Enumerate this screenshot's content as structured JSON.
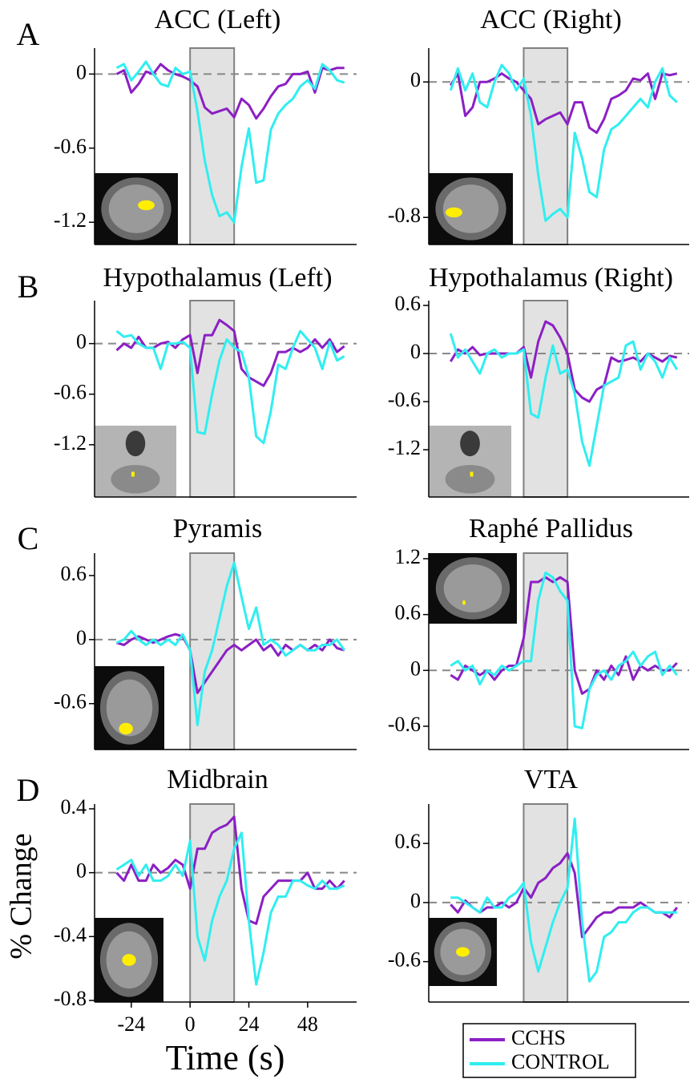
{
  "panel_labels": [
    "A",
    "B",
    "C",
    "D"
  ],
  "xlabel": "Time (s)",
  "ylabel": "% Change",
  "chart_data": [
    {
      "type": "line",
      "title": "ACC (Left)",
      "x": [
        -30,
        -27,
        -24,
        -21,
        -18,
        -15,
        -12,
        -9,
        -6,
        -3,
        0,
        3,
        6,
        9,
        12,
        15,
        18,
        21,
        24,
        27,
        30,
        33,
        36,
        39,
        42,
        45,
        48,
        51,
        54,
        57,
        60,
        63
      ],
      "xlim": [
        -39,
        68
      ],
      "ylim": [
        -1.38,
        0.21
      ],
      "yticks": [
        0,
        -0.6,
        -1.2
      ],
      "shade": [
        0,
        18
      ],
      "hline": 0,
      "series": [
        {
          "name": "CCHS",
          "color": "#8b1fc4",
          "values": [
            0,
            0.03,
            -0.15,
            -0.08,
            0.02,
            0,
            0.08,
            0.03,
            0,
            -0.02,
            -0.05,
            -0.1,
            -0.27,
            -0.32,
            -0.3,
            -0.28,
            -0.35,
            -0.2,
            -0.25,
            -0.36,
            -0.28,
            -0.18,
            -0.1,
            -0.08,
            0,
            0,
            0.02,
            -0.15,
            0.05,
            0.03,
            0.05,
            0.05
          ]
        },
        {
          "name": "CONTROL",
          "color": "#30eef0",
          "values": [
            0.05,
            0.08,
            -0.05,
            0.02,
            0.1,
            0,
            -0.08,
            -0.1,
            0.05,
            0,
            0.02,
            -0.3,
            -0.7,
            -0.98,
            -1.15,
            -1.12,
            -1.2,
            -0.75,
            -0.44,
            -0.88,
            -0.86,
            -0.45,
            -0.32,
            -0.25,
            -0.2,
            -0.1,
            -0.05,
            -0.12,
            0.08,
            0.03,
            -0.05,
            -0.07
          ]
        }
      ]
    },
    {
      "type": "line",
      "title": "ACC (Right)",
      "x": [
        -30,
        -27,
        -24,
        -21,
        -18,
        -15,
        -12,
        -9,
        -6,
        -3,
        0,
        3,
        6,
        9,
        12,
        15,
        18,
        21,
        24,
        27,
        30,
        33,
        36,
        39,
        42,
        45,
        48,
        51,
        54,
        57,
        60,
        63
      ],
      "xlim": [
        -39,
        68
      ],
      "ylim": [
        -0.96,
        0.2
      ],
      "yticks": [
        0,
        -0.8
      ],
      "shade": [
        0,
        18
      ],
      "hline": 0,
      "series": [
        {
          "name": "CCHS",
          "color": "#8b1fc4",
          "values": [
            -0.02,
            0.05,
            -0.2,
            -0.15,
            0,
            0,
            0.02,
            0.05,
            0.02,
            0,
            -0.05,
            -0.1,
            -0.25,
            -0.22,
            -0.2,
            -0.18,
            -0.25,
            -0.12,
            -0.12,
            -0.27,
            -0.3,
            -0.22,
            -0.1,
            -0.08,
            -0.05,
            0.02,
            0.01,
            0.05,
            -0.1,
            0.05,
            0.04,
            0.05
          ]
        },
        {
          "name": "CONTROL",
          "color": "#30eef0",
          "values": [
            -0.05,
            0.08,
            -0.05,
            0.05,
            -0.12,
            -0.15,
            0,
            0.1,
            0.05,
            -0.05,
            0.02,
            -0.2,
            -0.55,
            -0.82,
            -0.78,
            -0.75,
            -0.8,
            -0.3,
            -0.45,
            -0.65,
            -0.68,
            -0.4,
            -0.28,
            -0.25,
            -0.2,
            -0.15,
            -0.1,
            -0.15,
            0,
            0.08,
            -0.08,
            -0.12
          ]
        }
      ]
    },
    {
      "type": "line",
      "title": "Hypothalamus (Left)",
      "x": [
        -30,
        -27,
        -24,
        -21,
        -18,
        -15,
        -12,
        -9,
        -6,
        -3,
        0,
        3,
        6,
        9,
        12,
        15,
        18,
        21,
        24,
        27,
        30,
        33,
        36,
        39,
        42,
        45,
        48,
        51,
        54,
        57,
        60,
        63
      ],
      "xlim": [
        -39,
        68
      ],
      "ylim": [
        -1.82,
        0.51
      ],
      "yticks": [
        0,
        -0.6,
        -1.2
      ],
      "shade": [
        0,
        18
      ],
      "hline": 0,
      "series": [
        {
          "name": "CCHS",
          "color": "#8b1fc4",
          "values": [
            -0.08,
            0,
            -0.05,
            0.08,
            -0.05,
            -0.05,
            0,
            0.02,
            -0.05,
            0.05,
            0.1,
            -0.35,
            0.1,
            0.1,
            0.28,
            0.22,
            0.15,
            -0.3,
            -0.4,
            -0.45,
            -0.5,
            -0.35,
            -0.1,
            -0.1,
            -0.05,
            -0.1,
            -0.05,
            0.05,
            -0.05,
            0.05,
            -0.1,
            -0.03
          ]
        },
        {
          "name": "CONTROL",
          "color": "#30eef0",
          "values": [
            0.15,
            0.08,
            0.1,
            0,
            -0.05,
            -0.05,
            -0.3,
            0,
            0,
            0.02,
            -0.05,
            -1.05,
            -1.07,
            -0.6,
            -0.2,
            0.05,
            -0.05,
            -0.1,
            -0.4,
            -1.1,
            -1.18,
            -0.8,
            -0.25,
            -0.3,
            -0.05,
            0.15,
            0.05,
            -0.05,
            -0.3,
            0.02,
            -0.2,
            -0.15
          ]
        }
      ]
    },
    {
      "type": "line",
      "title": "Hypothalamus (Right)",
      "x": [
        -30,
        -27,
        -24,
        -21,
        -18,
        -15,
        -12,
        -9,
        -6,
        -3,
        0,
        3,
        6,
        9,
        12,
        15,
        18,
        21,
        24,
        27,
        30,
        33,
        36,
        39,
        42,
        45,
        48,
        51,
        54,
        57,
        60,
        63
      ],
      "xlim": [
        -39,
        68
      ],
      "ylim": [
        -1.79,
        0.66
      ],
      "yticks": [
        0.6,
        0,
        -0.6,
        -1.2
      ],
      "shade": [
        0,
        18
      ],
      "hline": 0,
      "series": [
        {
          "name": "CCHS",
          "color": "#8b1fc4",
          "values": [
            -0.1,
            0.05,
            0,
            0.08,
            -0.02,
            0,
            0,
            0,
            0,
            0,
            0.08,
            -0.3,
            0.15,
            0.4,
            0.35,
            0.2,
            0,
            -0.45,
            -0.55,
            -0.6,
            -0.45,
            -0.4,
            -0.05,
            -0.1,
            -0.08,
            -0.05,
            -0.1,
            0,
            -0.05,
            -0.1,
            -0.03,
            -0.05
          ]
        },
        {
          "name": "CONTROL",
          "color": "#30eef0",
          "values": [
            0.25,
            -0.05,
            0.05,
            -0.1,
            -0.25,
            0,
            0.05,
            -0.05,
            0,
            0,
            0.05,
            -0.75,
            -0.8,
            -0.3,
            0.1,
            -0.25,
            -0.2,
            -0.5,
            -1.1,
            -1.4,
            -0.9,
            -0.4,
            -0.35,
            -0.3,
            0.1,
            0.15,
            -0.2,
            0,
            -0.1,
            -0.3,
            -0.05,
            -0.2
          ]
        }
      ]
    },
    {
      "type": "line",
      "title": "Pyramis",
      "x": [
        -30,
        -27,
        -24,
        -21,
        -18,
        -15,
        -12,
        -9,
        -6,
        -3,
        0,
        3,
        6,
        9,
        12,
        15,
        18,
        21,
        24,
        27,
        30,
        33,
        36,
        39,
        42,
        45,
        48,
        51,
        54,
        57,
        60,
        63
      ],
      "xlim": [
        -39,
        68
      ],
      "ylim": [
        -1.03,
        0.81
      ],
      "yticks": [
        0.6,
        0,
        -0.6
      ],
      "shade": [
        0,
        18
      ],
      "hline": 0,
      "series": [
        {
          "name": "CCHS",
          "color": "#8b1fc4",
          "values": [
            -0.03,
            -0.05,
            0,
            0.03,
            0,
            -0.03,
            0,
            0.03,
            0.05,
            0.03,
            -0.1,
            -0.5,
            -0.4,
            -0.3,
            -0.2,
            -0.1,
            -0.05,
            -0.1,
            -0.05,
            0,
            -0.1,
            -0.05,
            -0.15,
            -0.05,
            -0.1,
            -0.05,
            -0.1,
            -0.05,
            -0.1,
            0,
            -0.08,
            -0.1
          ]
        },
        {
          "name": "CONTROL",
          "color": "#30eef0",
          "values": [
            -0.03,
            0,
            0.08,
            0,
            -0.05,
            0,
            -0.05,
            0,
            -0.05,
            0.05,
            -0.1,
            -0.8,
            -0.3,
            -0.1,
            0.2,
            0.5,
            0.72,
            0.4,
            0.1,
            0.3,
            -0.05,
            0,
            -0.05,
            -0.15,
            -0.1,
            -0.05,
            -0.1,
            -0.1,
            -0.05,
            -0.05,
            0,
            -0.1
          ]
        }
      ]
    },
    {
      "type": "line",
      "title": "Raphé Pallidus",
      "x": [
        -30,
        -27,
        -24,
        -21,
        -18,
        -15,
        -12,
        -9,
        -6,
        -3,
        0,
        3,
        6,
        9,
        12,
        15,
        18,
        21,
        24,
        27,
        30,
        33,
        36,
        39,
        42,
        45,
        48,
        51,
        54,
        57,
        60,
        63
      ],
      "xlim": [
        -39,
        68
      ],
      "ylim": [
        -0.85,
        1.26
      ],
      "yticks": [
        1.2,
        0.6,
        0,
        -0.6
      ],
      "shade": [
        0,
        18
      ],
      "hline": 0,
      "series": [
        {
          "name": "CCHS",
          "color": "#8b1fc4",
          "values": [
            -0.05,
            -0.1,
            0.05,
            0,
            -0.05,
            0,
            -0.1,
            0,
            0.05,
            0.05,
            0.35,
            0.95,
            0.95,
            1.0,
            0.95,
            1.0,
            0.95,
            0,
            -0.25,
            -0.2,
            0,
            -0.1,
            0.05,
            -0.05,
            0.15,
            -0.1,
            0.05,
            0,
            0.05,
            0,
            0,
            0.08
          ]
        },
        {
          "name": "CONTROL",
          "color": "#30eef0",
          "values": [
            0.05,
            0.1,
            0,
            0.05,
            -0.15,
            0,
            -0.05,
            0.05,
            0,
            0.05,
            0.1,
            0.1,
            0.75,
            1.05,
            1.0,
            0.85,
            0.75,
            -0.6,
            -0.62,
            -0.2,
            -0.05,
            0,
            -0.1,
            0.05,
            0.1,
            0.2,
            0.05,
            0.15,
            0.2,
            -0.05,
            0.05,
            -0.05
          ]
        }
      ]
    },
    {
      "type": "line",
      "title": "Midbrain",
      "x": [
        -30,
        -27,
        -24,
        -21,
        -18,
        -15,
        -12,
        -9,
        -6,
        -3,
        0,
        3,
        6,
        9,
        12,
        15,
        18,
        21,
        24,
        27,
        30,
        33,
        36,
        39,
        42,
        45,
        48,
        51,
        54,
        57,
        60,
        63
      ],
      "xlim": [
        -39,
        68
      ],
      "xticks": [
        -24,
        0,
        24,
        48
      ],
      "ylim": [
        -0.81,
        0.43
      ],
      "yticks": [
        0.4,
        0,
        -0.4,
        -0.8
      ],
      "shade": [
        0,
        18
      ],
      "hline": 0,
      "series": [
        {
          "name": "CCHS",
          "color": "#8b1fc4",
          "values": [
            0,
            -0.05,
            0.05,
            -0.05,
            -0.05,
            0.05,
            0,
            0.03,
            0.08,
            0.05,
            -0.1,
            0.15,
            0.15,
            0.25,
            0.28,
            0.3,
            0.35,
            -0.1,
            -0.3,
            -0.32,
            -0.15,
            -0.1,
            -0.05,
            -0.05,
            -0.05,
            -0.05,
            0,
            -0.1,
            -0.1,
            -0.05,
            -0.1,
            -0.05
          ]
        },
        {
          "name": "CONTROL",
          "color": "#30eef0",
          "values": [
            0.02,
            0.05,
            0.08,
            -0.02,
            0.05,
            -0.05,
            -0.05,
            -0.02,
            0.05,
            -0.02,
            0.2,
            -0.4,
            -0.55,
            -0.3,
            -0.15,
            -0.05,
            0.15,
            0.25,
            -0.3,
            -0.7,
            -0.5,
            -0.25,
            -0.15,
            -0.15,
            -0.05,
            -0.05,
            -0.08,
            -0.1,
            -0.05,
            -0.1,
            -0.1,
            -0.08
          ]
        }
      ]
    },
    {
      "type": "line",
      "title": "VTA",
      "x": [
        -30,
        -27,
        -24,
        -21,
        -18,
        -15,
        -12,
        -9,
        -6,
        -3,
        0,
        3,
        6,
        9,
        12,
        15,
        18,
        21,
        24,
        27,
        30,
        33,
        36,
        39,
        42,
        45,
        48,
        51,
        54,
        57,
        60,
        63
      ],
      "xlim": [
        -39,
        68
      ],
      "ylim": [
        -1.01,
        1.0
      ],
      "yticks": [
        0.6,
        0,
        -0.6
      ],
      "shade": [
        0,
        18
      ],
      "hline": 0,
      "series": [
        {
          "name": "CCHS",
          "color": "#8b1fc4",
          "values": [
            -0.02,
            -0.1,
            0.02,
            -0.05,
            -0.1,
            -0.05,
            -0.05,
            0,
            -0.05,
            0,
            0.15,
            0.05,
            0.2,
            0.25,
            0.35,
            0.4,
            0.5,
            0.3,
            -0.35,
            -0.25,
            -0.15,
            -0.1,
            -0.1,
            -0.05,
            -0.05,
            -0.05,
            0,
            -0.05,
            -0.1,
            -0.1,
            -0.15,
            -0.05
          ]
        },
        {
          "name": "CONTROL",
          "color": "#30eef0",
          "values": [
            0.05,
            0.05,
            0,
            -0.05,
            -0.1,
            0.05,
            -0.05,
            -0.05,
            0.05,
            0.1,
            0.2,
            -0.4,
            -0.7,
            -0.45,
            -0.2,
            0,
            0.15,
            0.85,
            -0.2,
            -0.8,
            -0.7,
            -0.35,
            -0.3,
            -0.2,
            -0.2,
            -0.1,
            -0.05,
            -0.05,
            -0.1,
            -0.1,
            -0.1,
            -0.1
          ]
        }
      ]
    }
  ]
}
